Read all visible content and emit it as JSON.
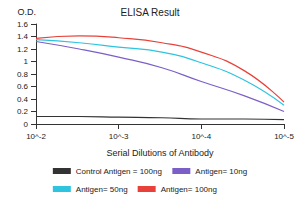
{
  "chart_data": {
    "type": "line",
    "title": "ELISA Result",
    "y_label": "O.D.",
    "x_label": "Serial Dilutions of Antibody",
    "log": "x",
    "grid": false,
    "legend": "bottom",
    "x": [
      0.01,
      0.003,
      0.001,
      0.0003,
      0.0001,
      3e-05,
      1e-05
    ],
    "xlim": [
      0.01,
      1e-05
    ],
    "xticks": [
      {
        "value": 0.01,
        "label": "10^-2"
      },
      {
        "value": 0.001,
        "label": "10^-3"
      },
      {
        "value": 0.0001,
        "label": "10^-4"
      },
      {
        "value": 1e-05,
        "label": "10^-5"
      }
    ],
    "ylim": [
      0,
      1.6
    ],
    "yticks": [
      0,
      0.2,
      0.4,
      0.6,
      0.8,
      1,
      1.2,
      1.4,
      1.6
    ],
    "series": [
      {
        "name": "Control Antigen = 100ng",
        "color": "#333333",
        "values": [
          0.12,
          0.12,
          0.11,
          0.1,
          0.08,
          0.08,
          0.07
        ]
      },
      {
        "name": "Antigen= 10ng",
        "color": "#7b5fc7",
        "values": [
          1.32,
          1.2,
          1.07,
          0.9,
          0.68,
          0.45,
          0.2
        ]
      },
      {
        "name": "Antigen= 50ng",
        "color": "#2ec4e0",
        "values": [
          1.35,
          1.3,
          1.23,
          1.15,
          0.98,
          0.7,
          0.3
        ]
      },
      {
        "name": "Antigen= 100ng",
        "color": "#e8413a",
        "values": [
          1.37,
          1.41,
          1.38,
          1.3,
          1.15,
          0.85,
          0.35
        ]
      }
    ]
  }
}
